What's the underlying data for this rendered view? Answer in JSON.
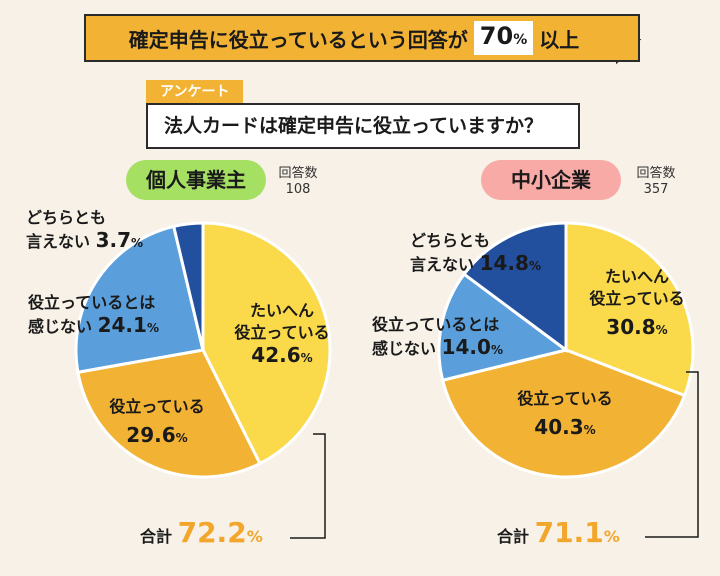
{
  "headline": {
    "prefix": "確定申告に役立っているという回答が",
    "value": "70",
    "unit": "%",
    "suffix": "以上"
  },
  "survey": {
    "tag": "アンケート",
    "question": "法人カードは確定申告に役立っていますか？"
  },
  "chart_data": [
    {
      "type": "pie",
      "title": "個人事業主",
      "respondents_label": "回答数",
      "respondents": "108",
      "slices": [
        {
          "label_lines": [
            "たいへん",
            "役立っている"
          ],
          "value": 42.6,
          "color": "#fad94a"
        },
        {
          "label_lines": [
            "役立っている"
          ],
          "value": 29.6,
          "color": "#f2b234"
        },
        {
          "label_lines": [
            "役立っているとは",
            "感じない"
          ],
          "value": 24.1,
          "color": "#5a9fdb"
        },
        {
          "label_lines": [
            "どちらとも",
            "言えない"
          ],
          "value": 3.7,
          "color": "#23509e"
        }
      ],
      "total_label": "合計",
      "total_value": "72.2"
    },
    {
      "type": "pie",
      "title": "中小企業",
      "respondents_label": "回答数",
      "respondents": "357",
      "slices": [
        {
          "label_lines": [
            "たいへん",
            "役立っている"
          ],
          "value": 30.8,
          "color": "#fad94a"
        },
        {
          "label_lines": [
            "役立っている"
          ],
          "value": 40.3,
          "color": "#f2b234"
        },
        {
          "label_lines": [
            "役立っているとは",
            "感じない"
          ],
          "value": 14.0,
          "color": "#5a9fdb"
        },
        {
          "label_lines": [
            "どちらとも",
            "言えない"
          ],
          "value": 14.8,
          "color": "#23509e"
        }
      ],
      "total_label": "合計",
      "total_value": "71.1"
    }
  ],
  "unit": "%",
  "colors": {
    "background": "#f8f1e7",
    "accent": "#f2b234",
    "total": "#f2a62c"
  }
}
